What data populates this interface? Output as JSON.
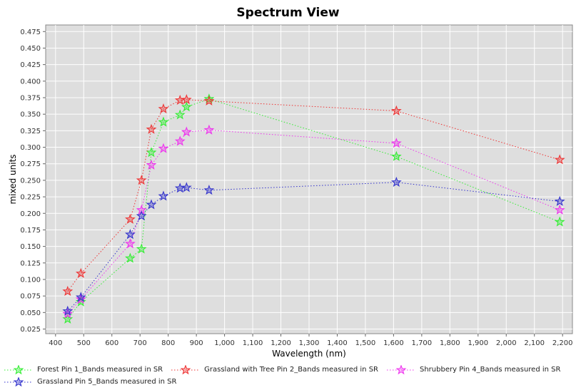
{
  "chart_data": {
    "type": "line",
    "title": "Spectrum View",
    "xlabel": "Wavelength (nm)",
    "ylabel": "mixed units",
    "xlim": [
      365,
      2235
    ],
    "ylim": [
      0.018,
      0.485
    ],
    "x_ticks": [
      400,
      500,
      600,
      700,
      800,
      900,
      1000,
      1100,
      1200,
      1300,
      1400,
      1500,
      1600,
      1700,
      1800,
      1900,
      2000,
      2100,
      2200
    ],
    "x_tick_labels": [
      "400",
      "500",
      "600",
      "700",
      "800",
      "900",
      "1,000",
      "1,100",
      "1,200",
      "1,300",
      "1,400",
      "1,500",
      "1,600",
      "1,700",
      "1,800",
      "1,900",
      "2,000",
      "2,100",
      "2,200"
    ],
    "y_ticks": [
      0.025,
      0.05,
      0.075,
      0.1,
      0.125,
      0.15,
      0.175,
      0.2,
      0.225,
      0.25,
      0.275,
      0.3,
      0.325,
      0.35,
      0.375,
      0.4,
      0.425,
      0.45,
      0.475
    ],
    "y_tick_labels": [
      "0.025",
      "0.050",
      "0.075",
      "0.100",
      "0.125",
      "0.150",
      "0.175",
      "0.200",
      "0.225",
      "0.250",
      "0.275",
      "0.300",
      "0.325",
      "0.350",
      "0.375",
      "0.400",
      "0.425",
      "0.450",
      "0.475"
    ],
    "grid": true,
    "legend_position": "bottom",
    "plot_background": "#dedede",
    "series": [
      {
        "name": "Forest Pin 1_Bands measured in SR",
        "color": "#33ee33",
        "x": [
          443,
          490,
          665,
          705,
          740,
          783,
          842,
          865,
          945,
          1610,
          2190
        ],
        "y": [
          0.04,
          0.066,
          0.132,
          0.146,
          0.292,
          0.338,
          0.349,
          0.361,
          0.373,
          0.286,
          0.187
        ]
      },
      {
        "name": "Grassland with Tree Pin 2_Bands measured in SR",
        "color": "#ee3333",
        "x": [
          443,
          490,
          665,
          705,
          740,
          783,
          842,
          865,
          945,
          1610,
          2190
        ],
        "y": [
          0.082,
          0.109,
          0.191,
          0.25,
          0.327,
          0.358,
          0.371,
          0.372,
          0.37,
          0.355,
          0.281
        ]
      },
      {
        "name": "Shrubbery Pin 4_Bands measured in SR",
        "color": "#ee33ee",
        "x": [
          443,
          490,
          665,
          705,
          740,
          783,
          842,
          865,
          945,
          1610,
          2190
        ],
        "y": [
          0.048,
          0.07,
          0.154,
          0.205,
          0.273,
          0.298,
          0.309,
          0.323,
          0.326,
          0.306,
          0.205
        ]
      },
      {
        "name": "Grassland Pin 5_Bands measured in SR",
        "color": "#3333cc",
        "x": [
          443,
          490,
          665,
          705,
          740,
          783,
          842,
          865,
          945,
          1610,
          2190
        ],
        "y": [
          0.052,
          0.073,
          0.168,
          0.196,
          0.213,
          0.226,
          0.238,
          0.239,
          0.235,
          0.247,
          0.218
        ]
      }
    ]
  }
}
